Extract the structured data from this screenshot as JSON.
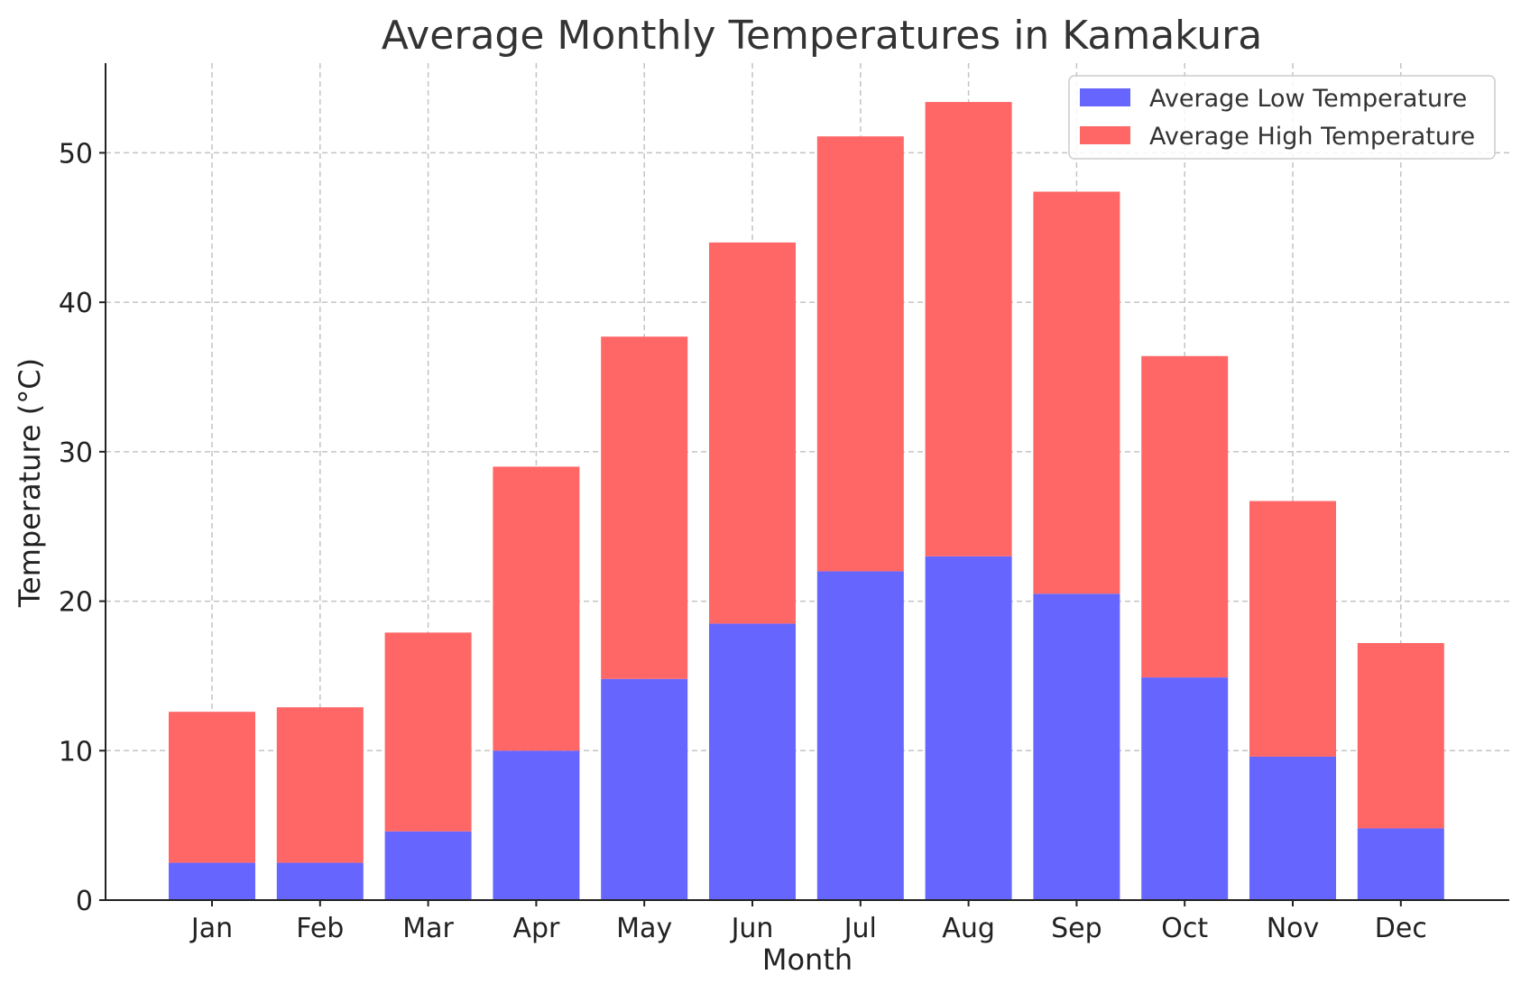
{
  "chart_data": {
    "type": "bar",
    "stacked": true,
    "title": "Average Monthly Temperatures in Kamakura",
    "xlabel": "Month",
    "ylabel": "Temperature (°C)",
    "categories": [
      "Jan",
      "Feb",
      "Mar",
      "Apr",
      "May",
      "Jun",
      "Jul",
      "Aug",
      "Sep",
      "Oct",
      "Nov",
      "Dec"
    ],
    "series": [
      {
        "name": "Average Low Temperature",
        "color": "#6666ff",
        "values": [
          2.5,
          2.5,
          4.6,
          10.0,
          14.8,
          18.5,
          22.0,
          23.0,
          20.5,
          14.9,
          9.6,
          4.8
        ]
      },
      {
        "name": "Average High Temperature",
        "color": "#ff6666",
        "values": [
          10.1,
          10.4,
          13.3,
          19.0,
          22.9,
          25.5,
          29.1,
          30.4,
          26.9,
          21.5,
          17.1,
          12.4
        ]
      }
    ],
    "ylim": [
      0,
      56
    ],
    "yticks": [
      0,
      10,
      20,
      30,
      40,
      50
    ],
    "grid": true,
    "legend": "top-right"
  }
}
